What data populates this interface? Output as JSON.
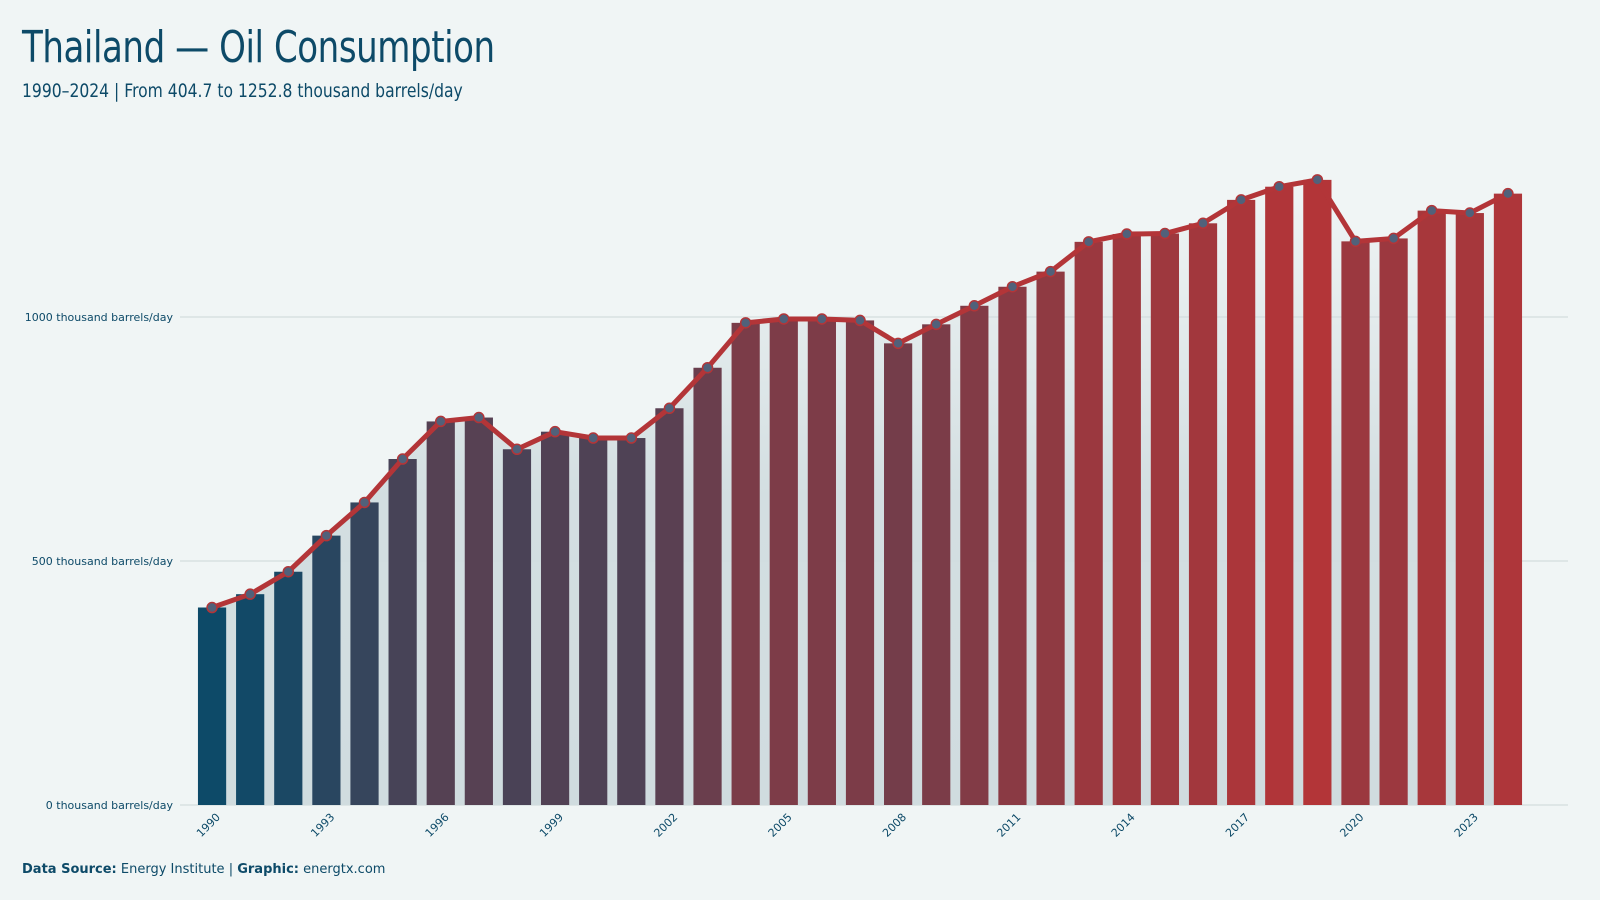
{
  "header": {
    "title": "Thailand — Oil Consumption",
    "subtitle": "1990–2024 | From 404.7 to 1252.8 thousand barrels/day"
  },
  "footer": {
    "source_label": "Data Source:",
    "source_value": "Energy Institute",
    "separator": "|",
    "graphic_label": "Graphic:",
    "graphic_value": "energtx.com"
  },
  "colors": {
    "start": "#0d4a68",
    "end": "#b33538",
    "line": "#b33538",
    "marker_fill": "#51617a",
    "grid": "#d4dede",
    "background": "#f0f5f5"
  },
  "chart_data": {
    "type": "bar",
    "x": [
      1990,
      1991,
      1992,
      1993,
      1994,
      1995,
      1996,
      1997,
      1998,
      1999,
      2000,
      2001,
      2002,
      2003,
      2004,
      2005,
      2006,
      2007,
      2008,
      2009,
      2010,
      2011,
      2012,
      2013,
      2014,
      2015,
      2016,
      2017,
      2018,
      2019,
      2020,
      2021,
      2022,
      2023,
      2024
    ],
    "values": [
      404.7,
      432,
      478,
      552,
      620,
      709,
      786,
      794,
      729,
      765,
      752,
      752,
      813,
      896,
      988,
      996,
      996,
      993,
      946,
      985,
      1023,
      1062,
      1093,
      1154,
      1170,
      1171,
      1192,
      1240,
      1267,
      1281,
      1155,
      1161,
      1218,
      1213,
      1252.8
    ],
    "overlay": "line with markers",
    "y_ticks": [
      0,
      500,
      1000
    ],
    "y_tick_labels": [
      "0 thousand barrels/day",
      "500 thousand barrels/day",
      "1000 thousand barrels/day"
    ],
    "x_tick_labels": [
      "1990",
      "1993",
      "1996",
      "1999",
      "2002",
      "2005",
      "2008",
      "2011",
      "2014",
      "2017",
      "2020",
      "2023"
    ],
    "ylim": [
      0,
      1350
    ],
    "grid": "horizontal",
    "legend": "none"
  }
}
